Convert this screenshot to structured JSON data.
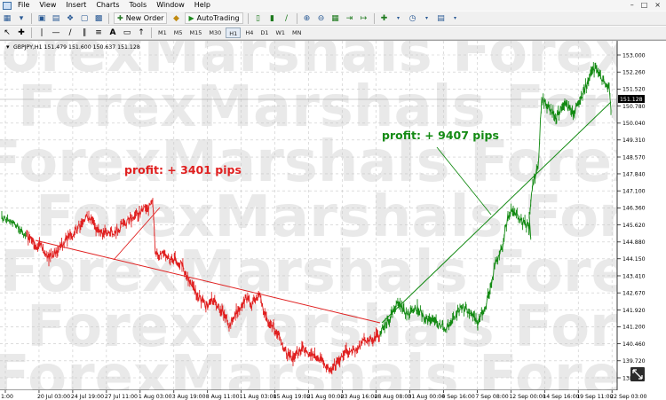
{
  "menu": {
    "items": [
      "File",
      "View",
      "Insert",
      "Charts",
      "Tools",
      "Window",
      "Help"
    ],
    "window_controls": [
      "–",
      "□",
      "×"
    ]
  },
  "toolbar1": {
    "new_order": "New Order",
    "autotrading": "AutoTrading"
  },
  "toolbar2": {
    "timeframes": [
      "M1",
      "M5",
      "M15",
      "M30",
      "H1",
      "H4",
      "D1",
      "W1",
      "MN"
    ]
  },
  "chart": {
    "info_line": "GBPJPY,H1  151.479 151.600 150.637 151.128",
    "current_price": "151.128",
    "price_labels": [
      "153.000",
      "152.260",
      "151.520",
      "150.780",
      "150.040",
      "149.310",
      "148.570",
      "147.840",
      "147.100",
      "146.360",
      "145.620",
      "144.880",
      "144.150",
      "143.410",
      "142.670",
      "141.920",
      "141.200",
      "140.460",
      "139.720",
      "138.980"
    ],
    "time_labels": [
      "1:00",
      "20 Jul 03:00",
      "24 Jul 19:00",
      "27 Jul 11:00",
      "1 Aug 03:00",
      "3 Aug 19:00",
      "8 Aug 11:00",
      "11 Aug 03:00",
      "15 Aug 19:00",
      "21 Aug 00:00",
      "23 Aug 16:00",
      "28 Aug 08:00",
      "31 Aug 00:00",
      "4 Sep 16:00",
      "7 Sep 08:00",
      "12 Sep 00:00",
      "14 Sep 16:00",
      "19 Sep 11:00",
      "22 Sep 03:00"
    ],
    "watermark": "ForexMarshals",
    "annotation_red": "profit: + 3401 pips",
    "annotation_green": "profit: + 9407 pips",
    "colors": {
      "red": "#e02020",
      "green": "#138a13",
      "grid": "#c8c8c8",
      "watermark": "#e9e9e9"
    }
  }
}
